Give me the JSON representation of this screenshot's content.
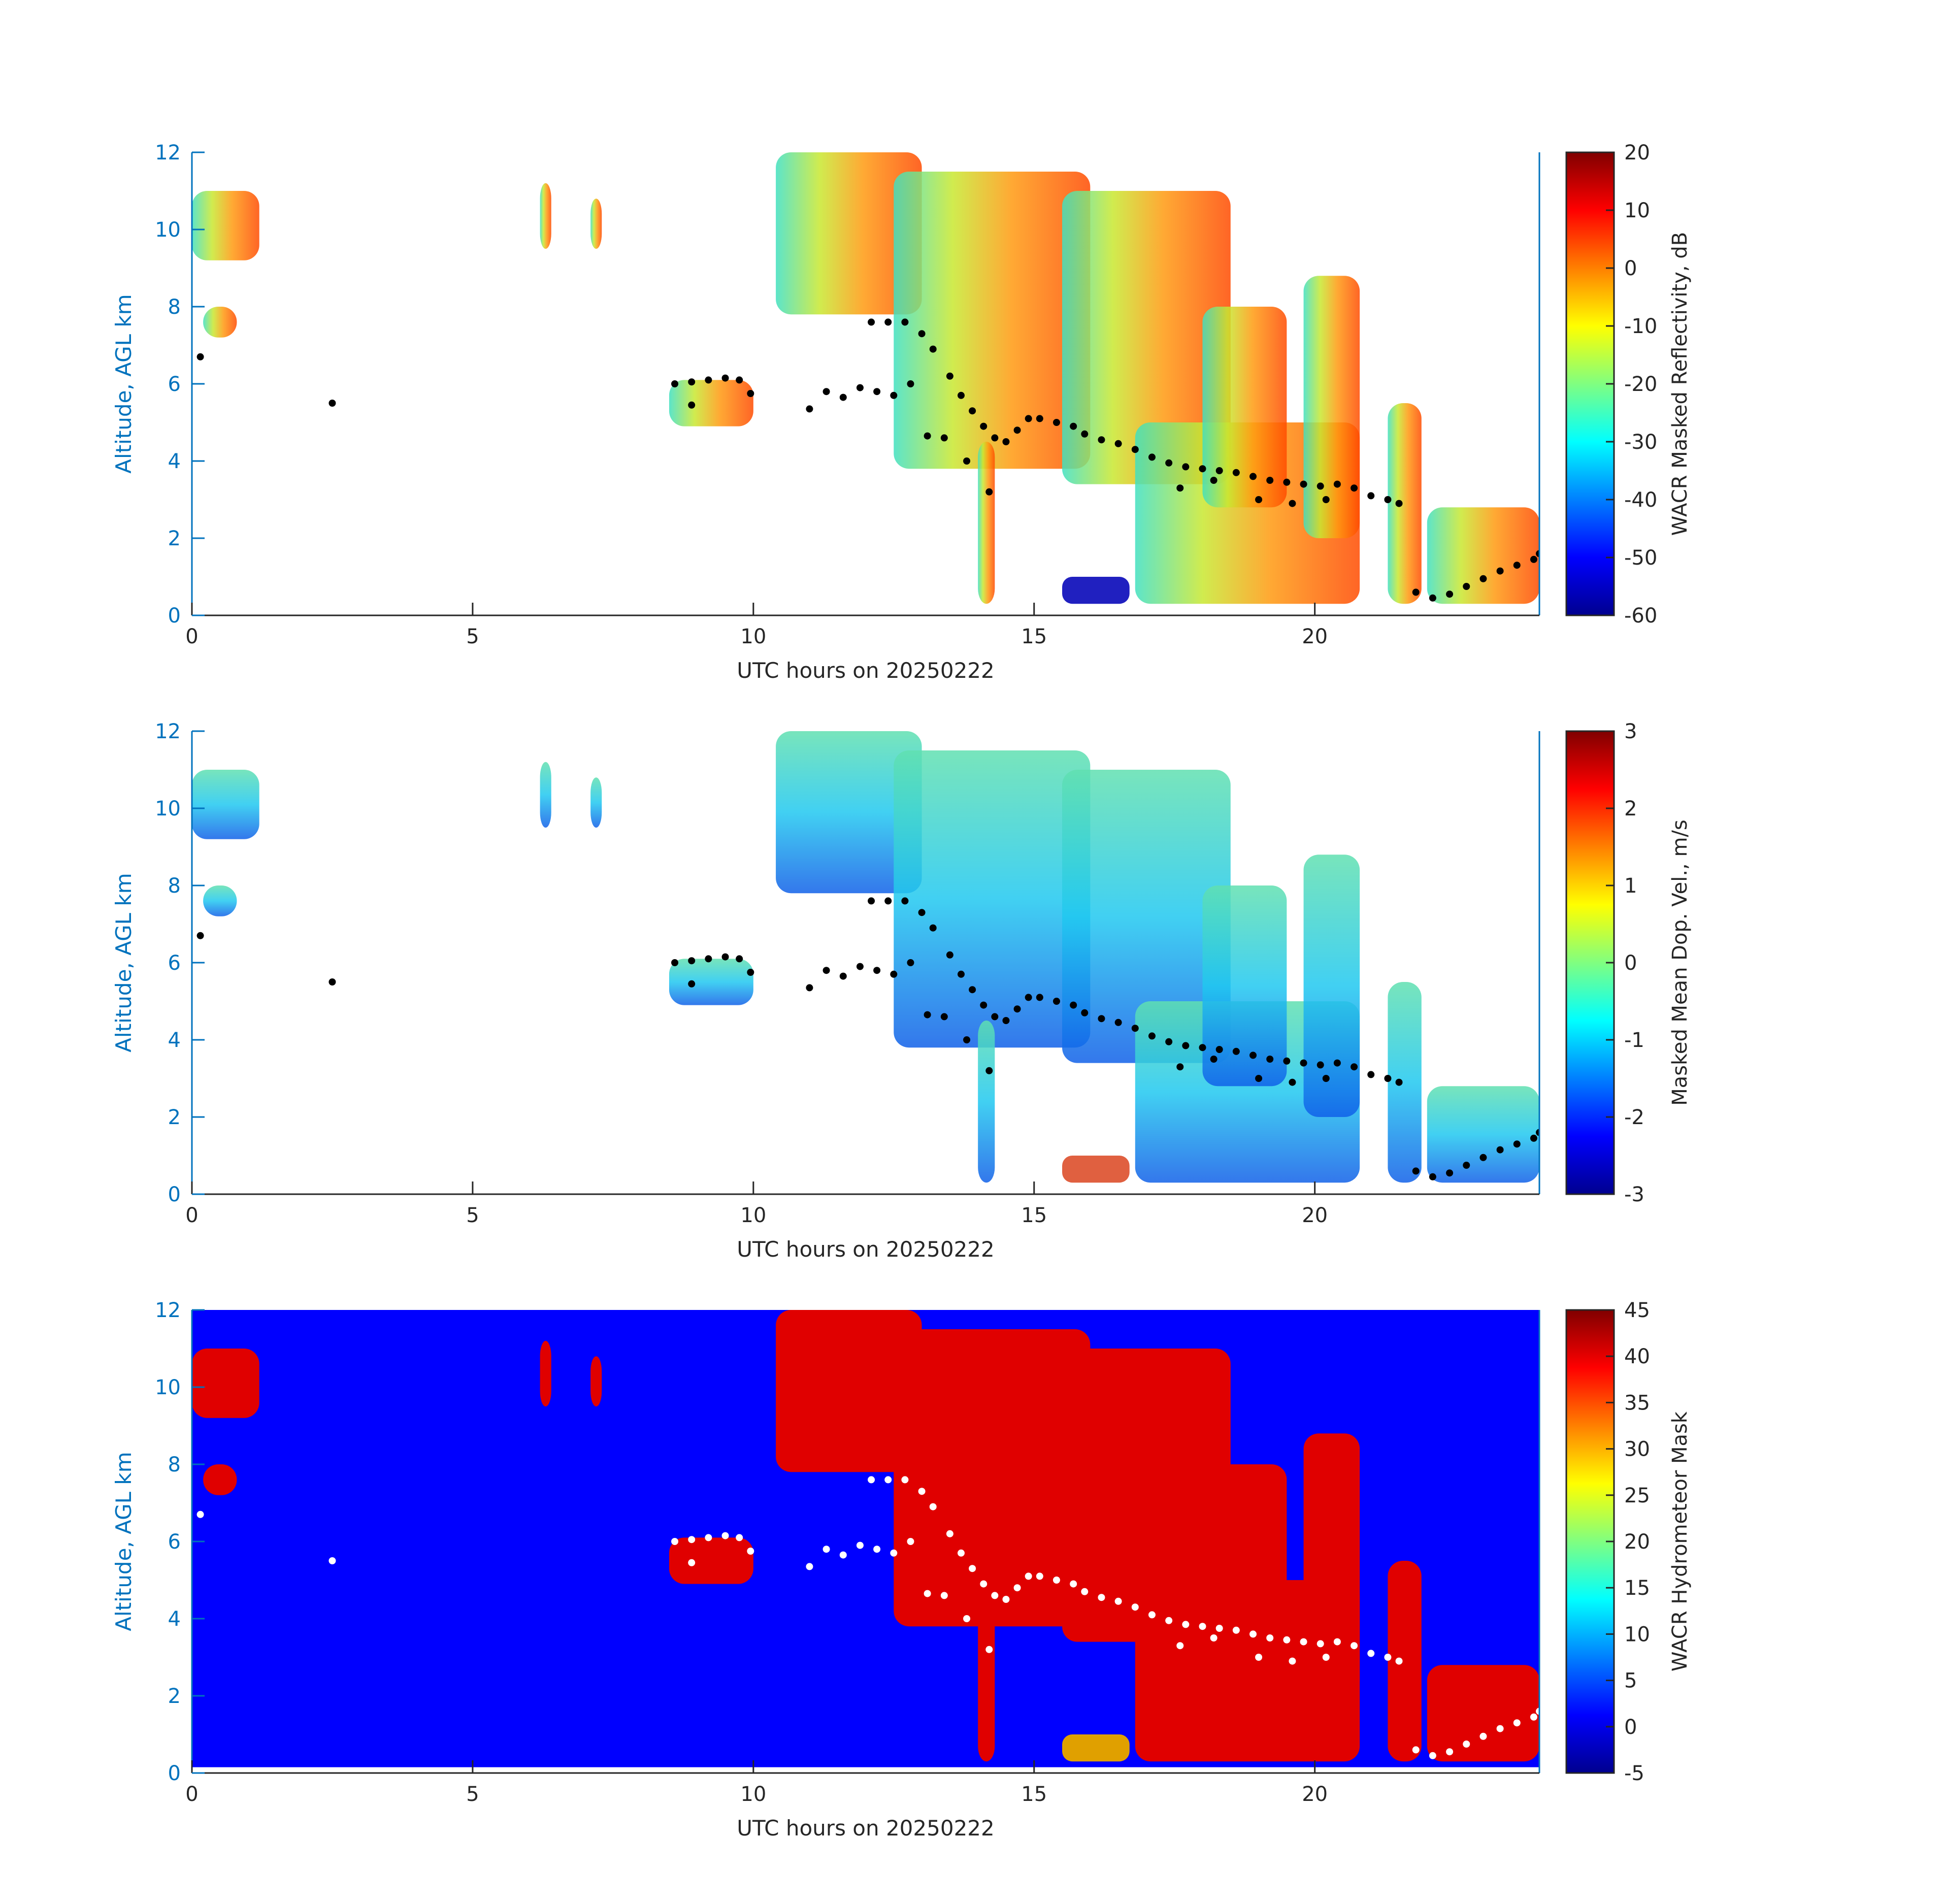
{
  "chart_data": [
    {
      "type": "heatmap",
      "title": "",
      "xlabel": "UTC hours on 20250222",
      "ylabel": "Altitude, AGL km",
      "xlim": [
        0,
        24
      ],
      "ylim": [
        0,
        12
      ],
      "x_ticks": [
        "0",
        "5",
        "10",
        "15",
        "20"
      ],
      "y_ticks": [
        "0",
        "2",
        "4",
        "6",
        "8",
        "10",
        "12"
      ],
      "background": "white",
      "colorbar": {
        "label": "WACR Masked Reflectivity, dB",
        "colormap": "jet",
        "range": [
          -60,
          20
        ],
        "ticks": [
          "20",
          "10",
          "0",
          "-10",
          "-20",
          "-30",
          "-40",
          "-50",
          "-60"
        ]
      },
      "overlay_points_color": "#000000"
    },
    {
      "type": "heatmap",
      "title": "",
      "xlabel": "UTC hours on 20250222",
      "ylabel": "Altitude, AGL km",
      "xlim": [
        0,
        24
      ],
      "ylim": [
        0,
        12
      ],
      "x_ticks": [
        "0",
        "5",
        "10",
        "15",
        "20"
      ],
      "y_ticks": [
        "0",
        "2",
        "4",
        "6",
        "8",
        "10",
        "12"
      ],
      "background": "white",
      "colorbar": {
        "label": "Masked Mean Dop. Vel., m/s",
        "colormap": "jet",
        "range": [
          -3,
          3
        ],
        "ticks": [
          "3",
          "2",
          "1",
          "0",
          "-1",
          "-2",
          "-3"
        ]
      },
      "overlay_points_color": "#000000"
    },
    {
      "type": "heatmap",
      "title": "",
      "xlabel": "UTC hours on 20250222",
      "ylabel": "Altitude, AGL km",
      "xlim": [
        0,
        24
      ],
      "ylim": [
        0,
        12
      ],
      "x_ticks": [
        "0",
        "5",
        "10",
        "15",
        "20"
      ],
      "y_ticks": [
        "0",
        "2",
        "4",
        "6",
        "8",
        "10",
        "12"
      ],
      "background": "blue",
      "colorbar": {
        "label": "WACR Hydrometeor Mask",
        "colormap": "jet",
        "range": [
          -5,
          45
        ],
        "ticks": [
          "45",
          "40",
          "35",
          "30",
          "25",
          "20",
          "15",
          "10",
          "5",
          "0",
          "-5"
        ]
      },
      "overlay_points_color": "#ffffff"
    }
  ],
  "cloud_base_points": [
    [
      0.15,
      6.7
    ],
    [
      2.5,
      5.5
    ],
    [
      8.6,
      6.0
    ],
    [
      8.9,
      6.05
    ],
    [
      9.2,
      6.1
    ],
    [
      9.5,
      6.15
    ],
    [
      9.75,
      6.1
    ],
    [
      9.95,
      5.75
    ],
    [
      8.9,
      5.45
    ],
    [
      11.0,
      5.35
    ],
    [
      11.3,
      5.8
    ],
    [
      11.6,
      5.65
    ],
    [
      11.9,
      5.9
    ],
    [
      12.2,
      5.8
    ],
    [
      12.5,
      5.7
    ],
    [
      12.8,
      6.0
    ],
    [
      12.1,
      7.6
    ],
    [
      12.4,
      7.6
    ],
    [
      12.7,
      7.6
    ],
    [
      13.0,
      7.3
    ],
    [
      13.2,
      6.9
    ],
    [
      13.5,
      6.2
    ],
    [
      13.7,
      5.7
    ],
    [
      13.9,
      5.3
    ],
    [
      14.1,
      4.9
    ],
    [
      14.3,
      4.6
    ],
    [
      14.5,
      4.5
    ],
    [
      14.7,
      4.8
    ],
    [
      14.9,
      5.1
    ],
    [
      15.1,
      5.1
    ],
    [
      15.4,
      5.0
    ],
    [
      15.7,
      4.9
    ],
    [
      15.9,
      4.7
    ],
    [
      16.2,
      4.55
    ],
    [
      16.5,
      4.45
    ],
    [
      16.8,
      4.3
    ],
    [
      17.1,
      4.1
    ],
    [
      17.4,
      3.95
    ],
    [
      17.7,
      3.85
    ],
    [
      18.0,
      3.8
    ],
    [
      18.3,
      3.75
    ],
    [
      18.6,
      3.7
    ],
    [
      18.9,
      3.6
    ],
    [
      19.2,
      3.5
    ],
    [
      19.5,
      3.45
    ],
    [
      19.8,
      3.4
    ],
    [
      20.1,
      3.35
    ],
    [
      20.4,
      3.4
    ],
    [
      20.7,
      3.3
    ],
    [
      21.0,
      3.1
    ],
    [
      21.3,
      3.0
    ],
    [
      21.5,
      2.9
    ],
    [
      21.8,
      0.6
    ],
    [
      22.1,
      0.45
    ],
    [
      22.4,
      0.55
    ],
    [
      22.7,
      0.75
    ],
    [
      23.0,
      0.95
    ],
    [
      23.3,
      1.15
    ],
    [
      23.6,
      1.3
    ],
    [
      23.9,
      1.45
    ],
    [
      24.0,
      1.6
    ],
    [
      13.1,
      4.65
    ],
    [
      13.4,
      4.6
    ],
    [
      13.8,
      4.0
    ],
    [
      14.2,
      3.2
    ],
    [
      17.6,
      3.3
    ],
    [
      18.2,
      3.5
    ],
    [
      19.0,
      3.0
    ],
    [
      19.6,
      2.9
    ],
    [
      20.2,
      3.0
    ]
  ]
}
